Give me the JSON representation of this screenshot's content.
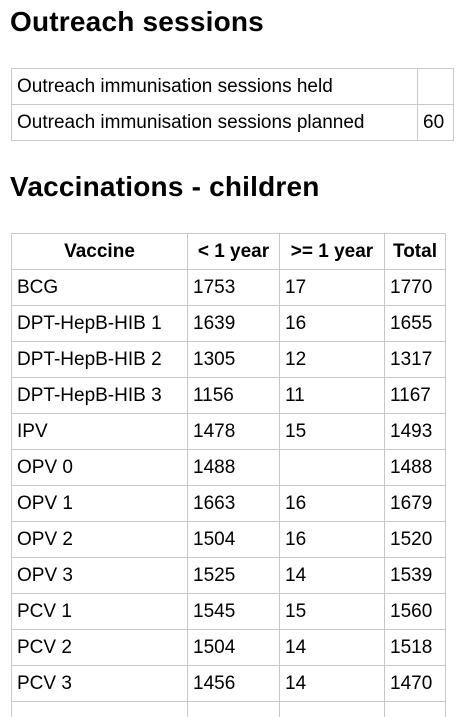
{
  "outreach": {
    "heading": "Outreach sessions",
    "rows": [
      {
        "label": "Outreach immunisation sessions held",
        "value": ""
      },
      {
        "label": "Outreach immunisation sessions planned",
        "value": "60"
      }
    ]
  },
  "vaccinations": {
    "heading": "Vaccinations - children",
    "columns": [
      "Vaccine",
      "< 1 year",
      ">= 1 year",
      "Total"
    ],
    "rows": [
      [
        "BCG",
        "1753",
        "17",
        "1770"
      ],
      [
        "DPT-HepB-HIB 1",
        "1639",
        "16",
        "1655"
      ],
      [
        "DPT-HepB-HIB 2",
        "1305",
        "12",
        "1317"
      ],
      [
        "DPT-HepB-HIB 3",
        "1156",
        "11",
        "1167"
      ],
      [
        "IPV",
        "1478",
        "15",
        "1493"
      ],
      [
        "OPV 0",
        "1488",
        "",
        "1488"
      ],
      [
        "OPV 1",
        "1663",
        "16",
        "1679"
      ],
      [
        "OPV 2",
        "1504",
        "16",
        "1520"
      ],
      [
        "OPV 3",
        "1525",
        "14",
        "1539"
      ],
      [
        "PCV 1",
        "1545",
        "15",
        "1560"
      ],
      [
        "PCV 2",
        "1504",
        "14",
        "1518"
      ],
      [
        "PCV 3",
        "1456",
        "14",
        "1470"
      ],
      [
        "",
        "",
        "",
        ""
      ]
    ]
  }
}
